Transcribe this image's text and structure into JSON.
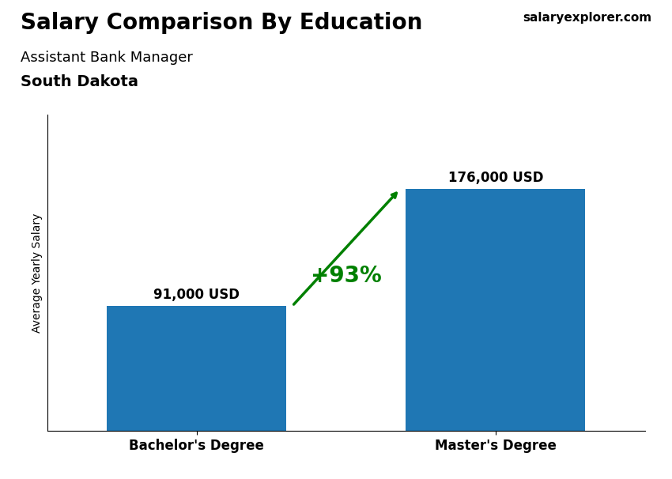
{
  "chart_data": {
    "type": "bar",
    "title": "Salary Comparison By Education",
    "subtitle": [
      "Assistant Bank Manager",
      "South Dakota"
    ],
    "ylabel": "Average Yearly Salary",
    "categories": [
      "Bachelor's Degree",
      "Master's Degree"
    ],
    "values": [
      91000,
      176000
    ],
    "value_labels": [
      "91,000 USD",
      "176,000 USD"
    ],
    "data_labels": true,
    "ylim": [
      0,
      230000
    ],
    "tick_labels": "x",
    "grid": false,
    "annotations": [
      {
        "text": "+93%"
      },
      {
        "text": "salaryexplorer.com"
      }
    ]
  }
}
